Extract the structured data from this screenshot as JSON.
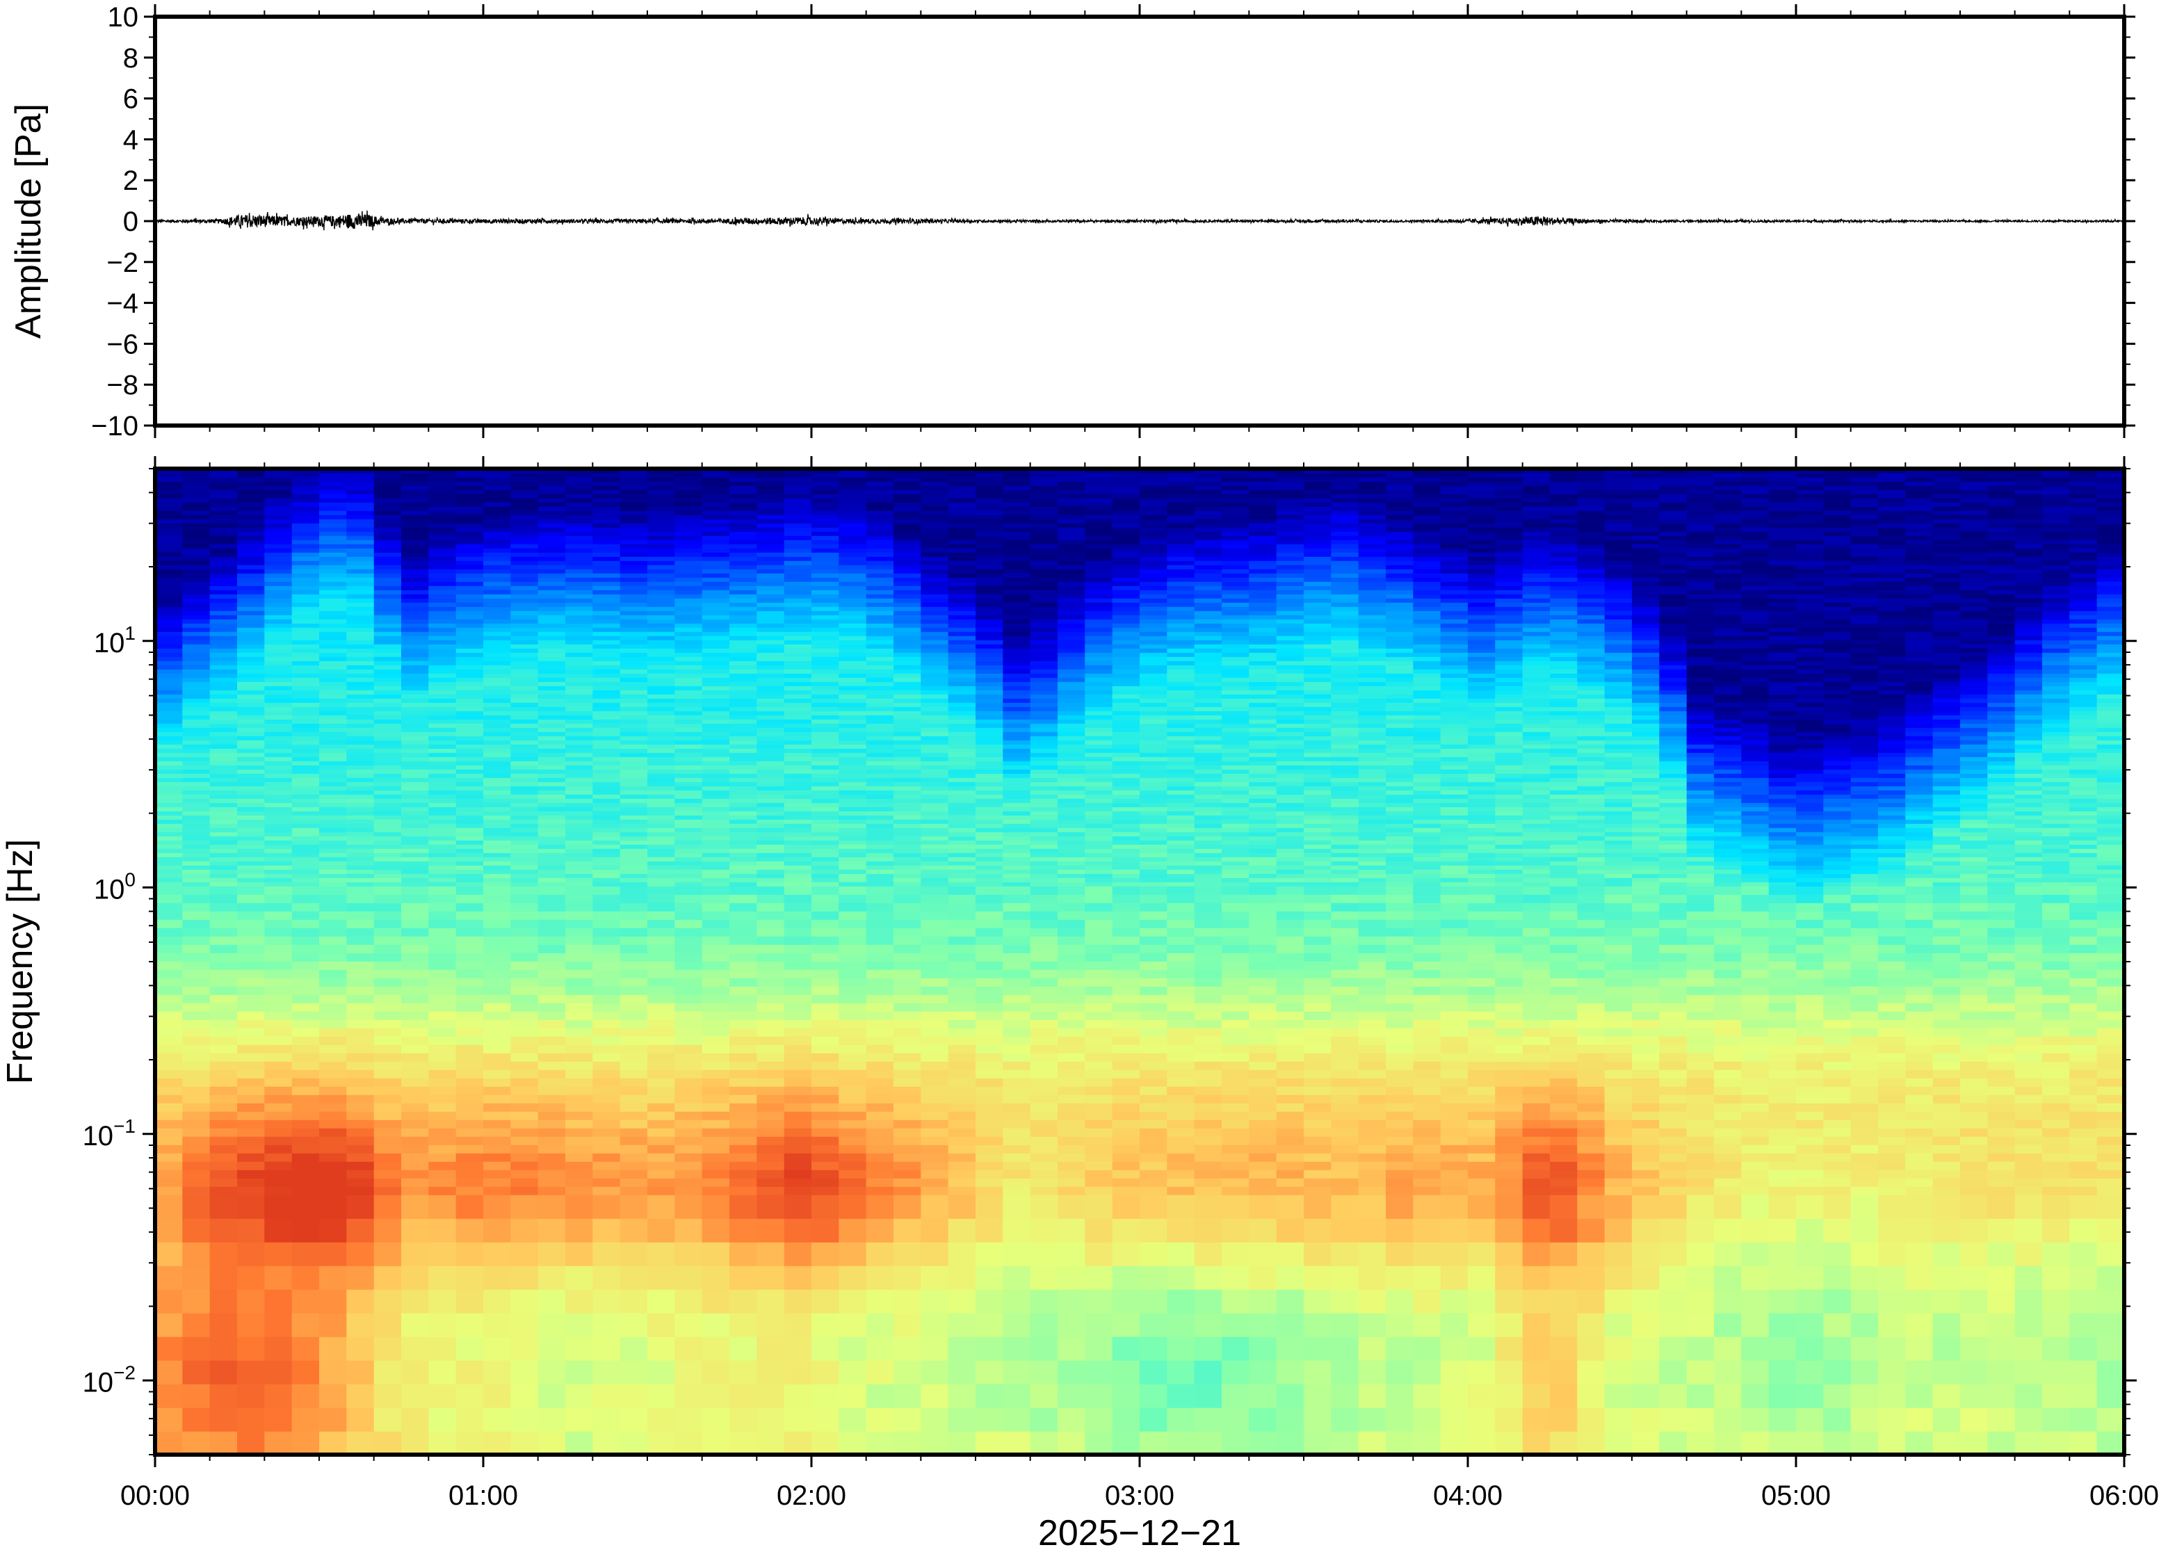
{
  "chart_data": [
    {
      "type": "line",
      "panel": "waveform",
      "title": "",
      "xlabel": "",
      "ylabel": "Amplitude [Pa]",
      "ylim": [
        -10,
        10
      ],
      "yticks": [
        10,
        8,
        6,
        4,
        2,
        0,
        -2,
        -4,
        -6,
        -8,
        -10
      ],
      "ytick_labels": [
        "10",
        "8",
        "6",
        "4",
        "2",
        "0",
        "−2",
        "−4",
        "−6",
        "−8",
        "−10"
      ],
      "grid": false,
      "line_color": "#000000",
      "envelope": {
        "note_unit": "hours since 00:00 vs Pa",
        "x_hours": [
          0.0,
          0.2,
          0.25,
          0.3,
          0.35,
          0.42,
          0.5,
          0.55,
          0.6,
          0.65,
          0.7,
          0.9,
          1.1,
          1.3,
          1.5,
          1.7,
          1.85,
          1.95,
          2.0,
          2.1,
          2.3,
          2.5,
          2.8,
          3.0,
          3.3,
          3.6,
          3.9,
          4.15,
          4.22,
          4.27,
          4.4,
          4.6,
          5.0,
          5.5,
          6.0
        ],
        "amplitude_pa": [
          0.12,
          0.18,
          0.55,
          0.6,
          0.5,
          0.4,
          0.45,
          0.5,
          0.7,
          0.6,
          0.25,
          0.18,
          0.2,
          0.16,
          0.18,
          0.2,
          0.3,
          0.35,
          0.35,
          0.22,
          0.2,
          0.12,
          0.1,
          0.12,
          0.1,
          0.12,
          0.1,
          0.3,
          0.45,
          0.3,
          0.15,
          0.1,
          0.1,
          0.08,
          0.08
        ]
      }
    },
    {
      "type": "heatmap",
      "panel": "spectrogram",
      "title": "",
      "xlabel": "2025−12−21",
      "ylabel": "Frequency [Hz]",
      "y_scale": "log",
      "ylim": [
        0.005,
        50
      ],
      "yticks": [
        0.01,
        0.1,
        1,
        10
      ],
      "ytick_labels": [
        {
          "base": "10",
          "exp": "−2"
        },
        {
          "base": "10",
          "exp": "−1"
        },
        {
          "base": "10",
          "exp": "0"
        },
        {
          "base": "10",
          "exp": "1"
        }
      ],
      "colormap": "jet",
      "colormap_stops": [
        "#00007f",
        "#0000ff",
        "#0080ff",
        "#00e5ff",
        "#7dffb0",
        "#e8ff7a",
        "#ffcb5e",
        "#ff7a32",
        "#e03c1e"
      ],
      "note_values": "relative power 0-1 by time and frequency",
      "time_hours": [
        0.0,
        0.25,
        0.45,
        0.6,
        0.75,
        1.0,
        1.25,
        1.5,
        1.75,
        1.95,
        2.1,
        2.4,
        2.65,
        2.9,
        3.1,
        3.4,
        3.6,
        3.85,
        4.05,
        4.25,
        4.45,
        4.7,
        5.0,
        5.3,
        5.6,
        6.0
      ],
      "high_freq_cutoff_hz": [
        3.0,
        6.0,
        12.0,
        15.0,
        5.0,
        8.0,
        9.0,
        8.0,
        9.0,
        10.0,
        10.0,
        5.0,
        2.0,
        5.0,
        7.0,
        8.0,
        10.0,
        7.0,
        5.0,
        7.0,
        5.0,
        1.2,
        0.7,
        1.0,
        2.0,
        6.0
      ],
      "microbarom_power": [
        0.72,
        0.88,
        0.95,
        0.95,
        0.75,
        0.8,
        0.78,
        0.74,
        0.8,
        0.92,
        0.85,
        0.72,
        0.6,
        0.68,
        0.7,
        0.72,
        0.7,
        0.75,
        0.72,
        0.9,
        0.72,
        0.62,
        0.58,
        0.6,
        0.62,
        0.62
      ],
      "low_freq_power": [
        0.72,
        0.8,
        0.72,
        0.62,
        0.5,
        0.48,
        0.42,
        0.45,
        0.48,
        0.5,
        0.45,
        0.42,
        0.4,
        0.35,
        0.3,
        0.35,
        0.38,
        0.42,
        0.45,
        0.6,
        0.45,
        0.42,
        0.35,
        0.42,
        0.42,
        0.38
      ]
    }
  ],
  "x_axis": {
    "xlim_hours": [
      0,
      6
    ],
    "tick_hours": [
      0,
      1,
      2,
      3,
      4,
      5,
      6
    ],
    "tick_labels": [
      "00:00",
      "01:00",
      "02:00",
      "03:00",
      "04:00",
      "05:00",
      "06:00"
    ],
    "date_label": "2025−12−21"
  }
}
